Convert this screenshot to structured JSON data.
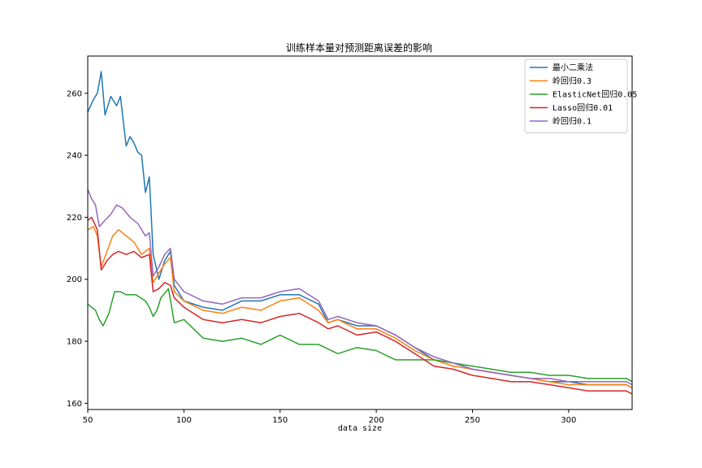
{
  "chart_data": {
    "type": "line",
    "title": "训练样本量对预测距离误差的影响",
    "xlabel": "data size",
    "ylabel": "",
    "xlim": [
      50,
      333
    ],
    "ylim": [
      158,
      272
    ],
    "xticks": [
      50,
      100,
      150,
      200,
      250,
      300
    ],
    "yticks": [
      160,
      180,
      200,
      220,
      240,
      260
    ],
    "grid": false,
    "legend_position": "top-right",
    "series": [
      {
        "name": "最小二乘法",
        "color": "#1f77b4",
        "points": [
          [
            50,
            254
          ],
          [
            53,
            258
          ],
          [
            55,
            260
          ],
          [
            57,
            267
          ],
          [
            59,
            253
          ],
          [
            62,
            259
          ],
          [
            65,
            256
          ],
          [
            67,
            259
          ],
          [
            70,
            243
          ],
          [
            72,
            246
          ],
          [
            74,
            244
          ],
          [
            76,
            241
          ],
          [
            78,
            240
          ],
          [
            80,
            228
          ],
          [
            82,
            233
          ],
          [
            84,
            208
          ],
          [
            87,
            200
          ],
          [
            90,
            206
          ],
          [
            93,
            209
          ],
          [
            95,
            198
          ],
          [
            100,
            193
          ],
          [
            110,
            191
          ],
          [
            120,
            190
          ],
          [
            130,
            193
          ],
          [
            140,
            193
          ],
          [
            150,
            195
          ],
          [
            160,
            195
          ],
          [
            170,
            192
          ],
          [
            175,
            186
          ],
          [
            180,
            187
          ],
          [
            190,
            185
          ],
          [
            200,
            185
          ],
          [
            210,
            182
          ],
          [
            220,
            178
          ],
          [
            230,
            174
          ],
          [
            240,
            173
          ],
          [
            250,
            171
          ],
          [
            260,
            170
          ],
          [
            270,
            169
          ],
          [
            280,
            168
          ],
          [
            290,
            167
          ],
          [
            300,
            167
          ],
          [
            310,
            166
          ],
          [
            320,
            166
          ],
          [
            330,
            166
          ],
          [
            333,
            165
          ]
        ]
      },
      {
        "name": "岭回归0.3",
        "color": "#ff7f0e",
        "points": [
          [
            50,
            216
          ],
          [
            53,
            217
          ],
          [
            55,
            214
          ],
          [
            57,
            204
          ],
          [
            60,
            209
          ],
          [
            63,
            214
          ],
          [
            66,
            216
          ],
          [
            70,
            214
          ],
          [
            74,
            212
          ],
          [
            78,
            208
          ],
          [
            82,
            210
          ],
          [
            84,
            199
          ],
          [
            87,
            202
          ],
          [
            90,
            205
          ],
          [
            93,
            207
          ],
          [
            95,
            196
          ],
          [
            100,
            193
          ],
          [
            110,
            190
          ],
          [
            120,
            189
          ],
          [
            130,
            191
          ],
          [
            140,
            190
          ],
          [
            150,
            193
          ],
          [
            160,
            194
          ],
          [
            170,
            190
          ],
          [
            175,
            186
          ],
          [
            180,
            187
          ],
          [
            190,
            184
          ],
          [
            200,
            184
          ],
          [
            210,
            181
          ],
          [
            220,
            177
          ],
          [
            230,
            174
          ],
          [
            240,
            172
          ],
          [
            250,
            171
          ],
          [
            260,
            170
          ],
          [
            270,
            169
          ],
          [
            280,
            168
          ],
          [
            290,
            167
          ],
          [
            300,
            166
          ],
          [
            310,
            166
          ],
          [
            320,
            166
          ],
          [
            330,
            166
          ],
          [
            333,
            165
          ]
        ]
      },
      {
        "name": "ElasticNet回归0.05",
        "color": "#2ca02c",
        "points": [
          [
            50,
            192
          ],
          [
            52,
            191
          ],
          [
            54,
            190
          ],
          [
            56,
            187
          ],
          [
            58,
            185
          ],
          [
            61,
            189
          ],
          [
            64,
            196
          ],
          [
            67,
            196
          ],
          [
            70,
            195
          ],
          [
            75,
            195
          ],
          [
            80,
            193
          ],
          [
            82,
            191
          ],
          [
            84,
            188
          ],
          [
            86,
            190
          ],
          [
            88,
            194
          ],
          [
            92,
            197
          ],
          [
            95,
            186
          ],
          [
            100,
            187
          ],
          [
            110,
            181
          ],
          [
            120,
            180
          ],
          [
            130,
            181
          ],
          [
            140,
            179
          ],
          [
            150,
            182
          ],
          [
            160,
            179
          ],
          [
            170,
            179
          ],
          [
            180,
            176
          ],
          [
            190,
            178
          ],
          [
            200,
            177
          ],
          [
            210,
            174
          ],
          [
            220,
            174
          ],
          [
            230,
            174
          ],
          [
            240,
            173
          ],
          [
            250,
            172
          ],
          [
            260,
            171
          ],
          [
            270,
            170
          ],
          [
            280,
            170
          ],
          [
            290,
            169
          ],
          [
            300,
            169
          ],
          [
            310,
            168
          ],
          [
            320,
            168
          ],
          [
            330,
            168
          ],
          [
            333,
            167
          ]
        ]
      },
      {
        "name": "Lasso回归0.01",
        "color": "#d62728",
        "points": [
          [
            50,
            219
          ],
          [
            52,
            220
          ],
          [
            55,
            216
          ],
          [
            57,
            203
          ],
          [
            60,
            206
          ],
          [
            63,
            208
          ],
          [
            66,
            209
          ],
          [
            70,
            208
          ],
          [
            74,
            209
          ],
          [
            78,
            207
          ],
          [
            82,
            208
          ],
          [
            84,
            196
          ],
          [
            87,
            197
          ],
          [
            90,
            199
          ],
          [
            93,
            198
          ],
          [
            95,
            194
          ],
          [
            100,
            191
          ],
          [
            110,
            187
          ],
          [
            120,
            186
          ],
          [
            130,
            187
          ],
          [
            140,
            186
          ],
          [
            150,
            188
          ],
          [
            160,
            189
          ],
          [
            170,
            186
          ],
          [
            175,
            184
          ],
          [
            180,
            185
          ],
          [
            190,
            182
          ],
          [
            200,
            183
          ],
          [
            210,
            180
          ],
          [
            220,
            176
          ],
          [
            230,
            172
          ],
          [
            240,
            171
          ],
          [
            250,
            169
          ],
          [
            260,
            168
          ],
          [
            270,
            167
          ],
          [
            280,
            167
          ],
          [
            290,
            166
          ],
          [
            300,
            165
          ],
          [
            310,
            164
          ],
          [
            320,
            164
          ],
          [
            330,
            164
          ],
          [
            333,
            163
          ]
        ]
      },
      {
        "name": "岭回归0.1",
        "color": "#9467bd",
        "points": [
          [
            50,
            229
          ],
          [
            52,
            226
          ],
          [
            54,
            224
          ],
          [
            56,
            217
          ],
          [
            59,
            219
          ],
          [
            62,
            221
          ],
          [
            65,
            224
          ],
          [
            68,
            223
          ],
          [
            72,
            220
          ],
          [
            76,
            218
          ],
          [
            80,
            214
          ],
          [
            82,
            215
          ],
          [
            84,
            201
          ],
          [
            87,
            204
          ],
          [
            90,
            208
          ],
          [
            93,
            210
          ],
          [
            95,
            200
          ],
          [
            100,
            196
          ],
          [
            110,
            193
          ],
          [
            120,
            192
          ],
          [
            130,
            194
          ],
          [
            140,
            194
          ],
          [
            150,
            196
          ],
          [
            160,
            197
          ],
          [
            170,
            193
          ],
          [
            175,
            187
          ],
          [
            180,
            188
          ],
          [
            190,
            186
          ],
          [
            200,
            185
          ],
          [
            210,
            182
          ],
          [
            220,
            178
          ],
          [
            230,
            175
          ],
          [
            240,
            173
          ],
          [
            250,
            171
          ],
          [
            260,
            170
          ],
          [
            270,
            169
          ],
          [
            280,
            168
          ],
          [
            290,
            168
          ],
          [
            300,
            167
          ],
          [
            310,
            167
          ],
          [
            320,
            167
          ],
          [
            330,
            167
          ],
          [
            333,
            166
          ]
        ]
      }
    ]
  }
}
